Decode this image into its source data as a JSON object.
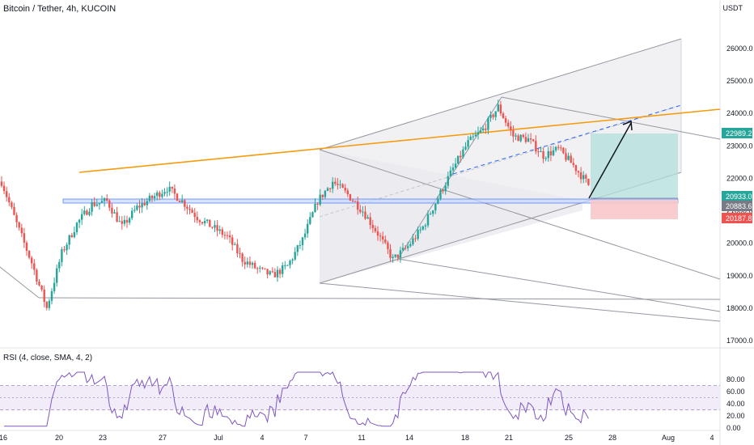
{
  "header": {
    "title": "Bitcoin / Tether, 4h, KUCOIN",
    "unit": "USDT"
  },
  "rsi_label": "RSI (4, close, SMA, 4, 2)",
  "colors": {
    "up": "#26a69a",
    "down": "#ef5350",
    "orange_line": "#f59b0c",
    "gray_line": "#9598a1",
    "blue_line": "#2962ff",
    "rsi_line": "#7e57c2",
    "rsi_band": "#ede7f6",
    "tp_zone": "#b2dfdb",
    "sl_zone": "#f8c7ca"
  },
  "chart_data": [
    {
      "type": "candlestick",
      "title": "Bitcoin / Tether, 4h, KUCOIN",
      "ylabel": "USDT",
      "ylim": [
        16600,
        26800
      ],
      "y_ticks": [
        "17000.0",
        "18000.0",
        "19000.0",
        "20000.0",
        "21000.0",
        "22000.0",
        "23000.0",
        "24000.0",
        "25000.0",
        "26000.0"
      ],
      "x_ticks": [
        "16",
        "20",
        "23",
        "27",
        "Jul",
        "4",
        "7",
        "11",
        "14",
        "18",
        "21",
        "25",
        "28",
        "Aug",
        "4"
      ],
      "price_labels": [
        {
          "value": "22989.2",
          "color": "#26a69a"
        },
        {
          "value": "20933.0",
          "color": "#26a69a"
        },
        {
          "value": "20883.6",
          "color": "#787b86"
        },
        {
          "value": "20187.8",
          "color": "#ef5350"
        }
      ],
      "path_day": [
        [
          0,
          21900
        ],
        [
          1,
          20600
        ],
        [
          2,
          19400
        ],
        [
          3,
          18000
        ],
        [
          4,
          19700
        ],
        [
          5,
          20600
        ],
        [
          6,
          21200
        ],
        [
          7,
          21300
        ],
        [
          8,
          20500
        ],
        [
          9,
          21100
        ],
        [
          10,
          21400
        ],
        [
          11,
          21700
        ],
        [
          12,
          21300
        ],
        [
          13,
          20800
        ],
        [
          14,
          20500
        ],
        [
          15,
          20200
        ],
        [
          16,
          19500
        ],
        [
          17,
          19200
        ],
        [
          18,
          19000
        ],
        [
          19,
          19300
        ],
        [
          20,
          20100
        ],
        [
          21,
          21300
        ],
        [
          22,
          21900
        ],
        [
          23,
          21500
        ],
        [
          24,
          21000
        ],
        [
          25,
          20300
        ],
        [
          26,
          19500
        ],
        [
          27,
          19900
        ],
        [
          28,
          20500
        ],
        [
          29,
          21400
        ],
        [
          30,
          22300
        ],
        [
          31,
          23100
        ],
        [
          32,
          23500
        ],
        [
          33,
          24200
        ],
        [
          34,
          23300
        ],
        [
          35,
          23200
        ],
        [
          36,
          22700
        ],
        [
          37,
          22900
        ],
        [
          38,
          22400
        ],
        [
          39,
          21800
        ],
        [
          39.9,
          20900
        ]
      ],
      "series": [
        {
          "name": "OHLC"
        }
      ]
    },
    {
      "type": "line",
      "title": "RSI (4, close, SMA, 4, 2)",
      "ylim": [
        0,
        85
      ],
      "y_ticks": [
        "0.00",
        "20.00",
        "40.00",
        "60.00",
        "80.00"
      ],
      "bands": [
        30,
        50,
        70
      ],
      "series": [
        {
          "name": "RSI"
        }
      ]
    }
  ]
}
